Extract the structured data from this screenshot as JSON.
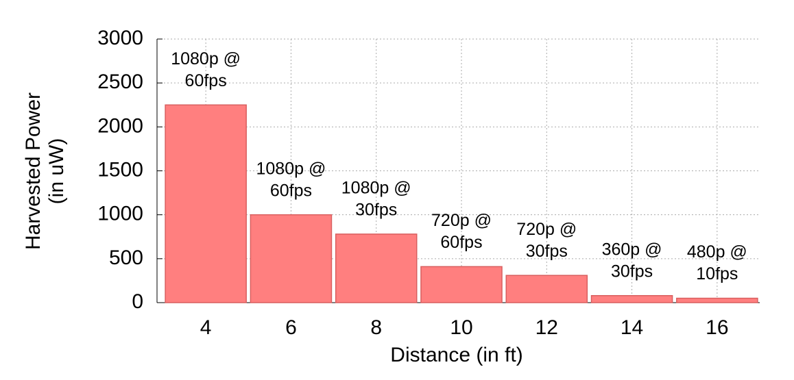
{
  "chart_data": {
    "type": "bar",
    "xlabel": "Distance (in ft)",
    "ylabel": [
      "Harvested Power",
      "(in uW)"
    ],
    "categories": [
      "4",
      "6",
      "8",
      "10",
      "12",
      "14",
      "16"
    ],
    "values": [
      2250,
      1000,
      780,
      410,
      310,
      80,
      50
    ],
    "annotations": [
      [
        "1080p @",
        "60fps"
      ],
      [
        "1080p @",
        "60fps"
      ],
      [
        "1080p @",
        "30fps"
      ],
      [
        "720p @",
        "60fps"
      ],
      [
        "720p @",
        "30fps"
      ],
      [
        "360p @",
        "30fps"
      ],
      [
        "480p @",
        "10fps"
      ]
    ],
    "color": "#ff7f7f",
    "ylim": [
      0,
      3000
    ],
    "yticks": [
      0,
      500,
      1000,
      1500,
      2000,
      2500,
      3000
    ],
    "grid": true
  }
}
